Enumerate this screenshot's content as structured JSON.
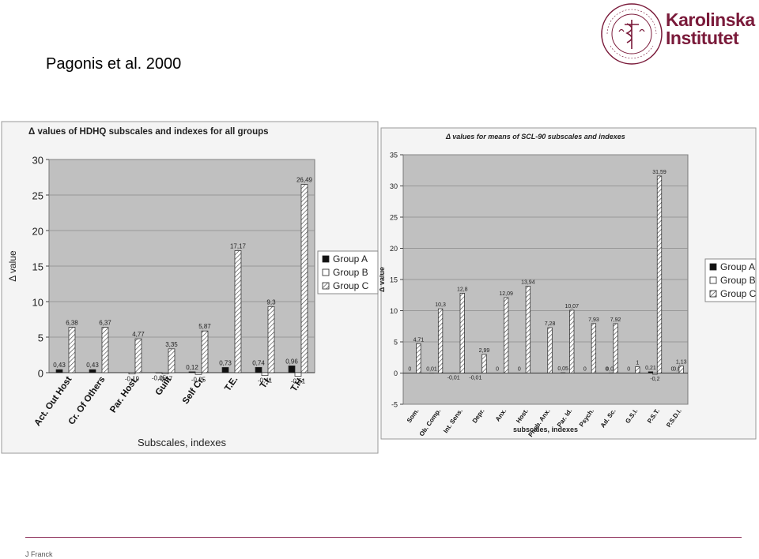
{
  "slide": {
    "title": "Pagonis et al. 2000",
    "footer": "J Franck",
    "logo_line1": "Karolinska",
    "logo_line2": "Institutet",
    "seal_text": "KAROLINSKA INSTITUTET ANNO 1810",
    "brand_color": "#7a1a3a"
  },
  "chart_data": [
    {
      "type": "bar",
      "title": "Δ values of HDHQ subscales and indexes for all groups",
      "xlabel": "Subscales, indexes",
      "ylabel": "Δ value",
      "ylim": [
        0,
        30
      ],
      "yticks": [
        0,
        5,
        10,
        15,
        20,
        25,
        30
      ],
      "grid": true,
      "legend": "right",
      "categories": [
        "Act. Out Host",
        "Cr. Of Others",
        "Par. Host.",
        "Guilt",
        "Self Cr.",
        "T.E.",
        "T.I.",
        "T.H."
      ],
      "series": [
        {
          "name": "Group A",
          "values": [
            0.43,
            0.43,
            0,
            -0.05,
            0.12,
            0.73,
            0.74,
            0.96
          ],
          "labels": [
            "0,43",
            "0,43",
            "",
            "-0,05",
            "0,12",
            "0,73",
            "0,74",
            "0,96"
          ]
        },
        {
          "name": "Group B",
          "values": [
            0,
            0,
            -0.19,
            -0.17,
            -0.25,
            0,
            -0.41,
            -0.51
          ],
          "labels": [
            "",
            "",
            "-0,19",
            "-0,17",
            "-0,25",
            "",
            "-0,41",
            "-0,51"
          ]
        },
        {
          "name": "Group C",
          "values": [
            6.38,
            6.37,
            4.77,
            3.35,
            5.87,
            17.17,
            9.3,
            26.49
          ],
          "labels": [
            "6,38",
            "6,37",
            "4,77",
            "3,35",
            "5,87",
            "17,17",
            "9,3",
            "26,49"
          ]
        }
      ]
    },
    {
      "type": "bar",
      "title": "Δ values for means of SCL-90 subscales and indexes",
      "xlabel": "subscales, indexes",
      "ylabel": "Δ value",
      "ylim": [
        -5,
        35
      ],
      "yticks": [
        -5,
        0,
        5,
        10,
        15,
        20,
        25,
        30,
        35
      ],
      "grid": true,
      "legend": "right",
      "categories": [
        "Som.",
        "Ob. Comp.",
        "Int. Sens.",
        "Depr.",
        "Anx.",
        "Host.",
        "Phob. Anx.",
        "Par. Id.",
        "Psych.",
        "Ad. Sc.",
        "G.S.I.",
        "P.S.T.",
        "P.S.D.I."
      ],
      "series": [
        {
          "name": "Group A",
          "values": [
            0,
            0.01,
            -0.01,
            -0.01,
            0,
            0,
            0,
            0.05,
            0,
            0,
            0,
            0.21,
            0
          ],
          "labels": [
            "0",
            "0,01",
            "-0,01",
            "-0,01",
            "0",
            "0",
            "",
            "0,05",
            "0",
            "0",
            "0",
            "0,21",
            "0"
          ]
        },
        {
          "name": "Group B",
          "values": [
            0,
            0,
            0,
            0,
            0,
            0,
            0,
            0,
            0,
            0.03,
            0,
            -0.2,
            0
          ],
          "labels": [
            "",
            "",
            "",
            "",
            "",
            "",
            "",
            "",
            "",
            "0,03",
            "",
            "-0,2",
            "0,0"
          ]
        },
        {
          "name": "Group C",
          "values": [
            4.71,
            10.3,
            12.8,
            2.99,
            12.09,
            13.94,
            7.28,
            10.07,
            7.93,
            7.92,
            1,
            31.59,
            1.13
          ],
          "labels": [
            "4,71",
            "10,3",
            "12,8",
            "2,99",
            "12,09",
            "13,94",
            "7,28",
            "10,07",
            "7,93",
            "7,92",
            "1",
            "31,59",
            "1,13"
          ]
        }
      ]
    }
  ]
}
